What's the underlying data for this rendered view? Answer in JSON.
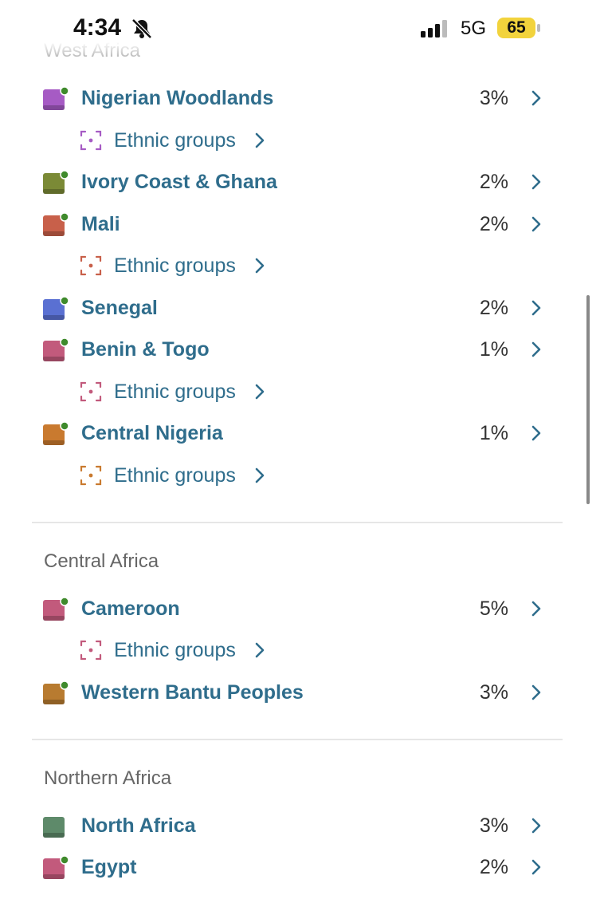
{
  "status_bar": {
    "time": "4:34",
    "network": "5G",
    "battery": "65"
  },
  "sections": [
    {
      "title": "West Africa",
      "items": [
        {
          "name": "Nigerian Woodlands",
          "percent": "3%",
          "color": "#a65bc4",
          "badge": true,
          "ethnic_groups": "Ethnic groups"
        },
        {
          "name": "Ivory Coast & Ghana",
          "percent": "2%",
          "color": "#7b8a36",
          "badge": true
        },
        {
          "name": "Mali",
          "percent": "2%",
          "color": "#c8604a",
          "badge": true,
          "ethnic_groups": "Ethnic groups"
        },
        {
          "name": "Senegal",
          "percent": "2%",
          "color": "#5a70d2",
          "badge": true
        },
        {
          "name": "Benin & Togo",
          "percent": "1%",
          "color": "#c25a7c",
          "badge": true,
          "ethnic_groups": "Ethnic groups"
        },
        {
          "name": "Central Nigeria",
          "percent": "1%",
          "color": "#c97a2f",
          "badge": true,
          "ethnic_groups": "Ethnic groups"
        }
      ]
    },
    {
      "title": "Central Africa",
      "items": [
        {
          "name": "Cameroon",
          "percent": "5%",
          "color": "#c25a7c",
          "badge": true,
          "ethnic_groups": "Ethnic groups"
        },
        {
          "name": "Western Bantu Peoples",
          "percent": "3%",
          "color": "#b87b30",
          "badge": true
        }
      ]
    },
    {
      "title": "Northern Africa",
      "items": [
        {
          "name": "North Africa",
          "percent": "3%",
          "color": "#5e8a6a",
          "badge": false
        },
        {
          "name": "Egypt",
          "percent": "2%",
          "color": "#c25a7c",
          "badge": true
        }
      ]
    }
  ]
}
